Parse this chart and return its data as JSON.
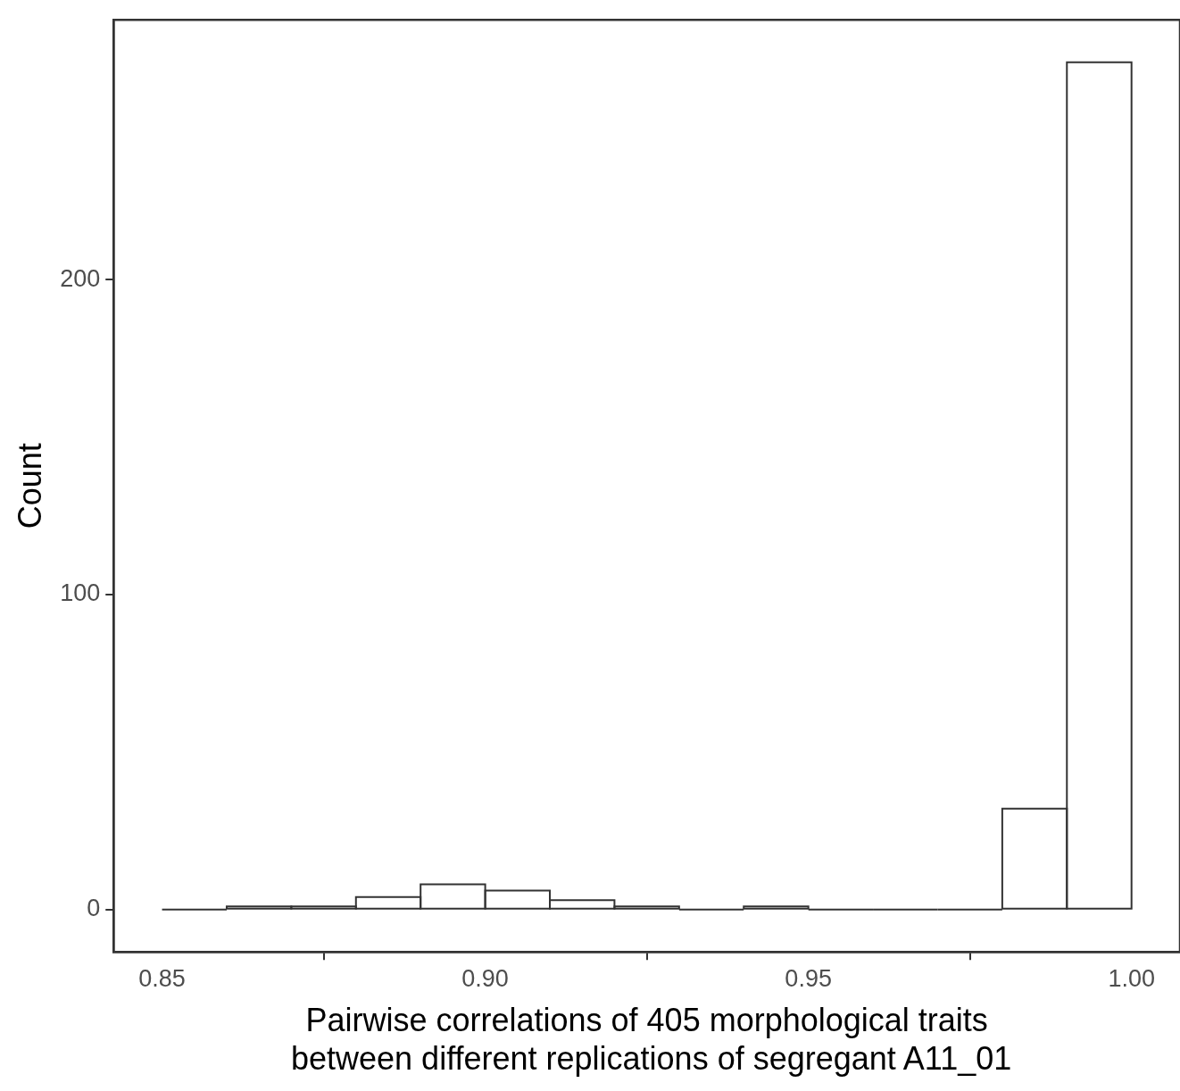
{
  "chart_data": {
    "type": "histogram",
    "xlabel": "Pairwise correlations of 405 morphological traits\n between different replications of segregant A11_01",
    "ylabel": "Count",
    "bins": [
      0.85,
      0.86,
      0.87,
      0.88,
      0.89,
      0.9,
      0.91,
      0.92,
      0.93,
      0.94,
      0.95,
      0.96,
      0.97,
      0.98,
      0.99,
      1.0
    ],
    "values": [
      0,
      1,
      1,
      4,
      8,
      6,
      3,
      1,
      0,
      1,
      0,
      0,
      0,
      32,
      269
    ],
    "color": "#333333",
    "xlim": [
      0.8425,
      1.0075
    ],
    "xticks": [
      {
        "value": 0.85,
        "label": "0.85"
      },
      {
        "value": 0.9,
        "label": "0.90"
      },
      {
        "value": 0.95,
        "label": "0.95"
      },
      {
        "value": 1.0,
        "label": "1.00"
      }
    ],
    "ylim": [
      -13.45,
      282.45
    ],
    "yticks": [
      0,
      100,
      200
    ],
    "grid": false,
    "legend": false
  }
}
